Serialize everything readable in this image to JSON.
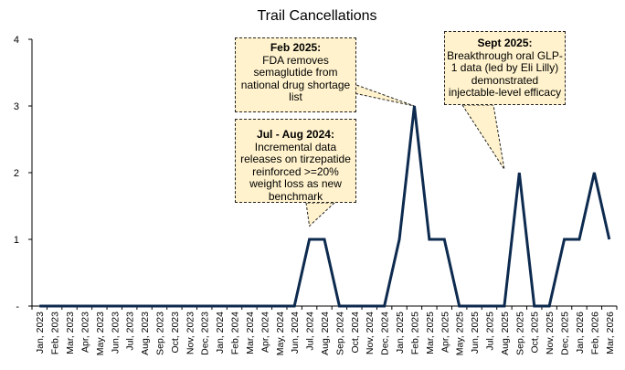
{
  "chart_data": {
    "type": "line",
    "title": "Trail Cancellations",
    "xlabel": "",
    "ylabel": "",
    "ylim": [
      0,
      4
    ],
    "yticks": [
      "-",
      "1",
      "2",
      "3",
      "4"
    ],
    "grid": false,
    "legend": "none",
    "categories": [
      "Jan, 2023",
      "Feb, 2023",
      "Mar, 2023",
      "Apr, 2023",
      "May, 2023",
      "Jun, 2023",
      "Jul, 2023",
      "Aug, 2023",
      "Sep, 2023",
      "Oct, 2023",
      "Nov, 2023",
      "Dec, 2023",
      "Jan, 2024",
      "Feb, 2024",
      "Mar, 2024",
      "Apr, 2024",
      "May, 2024",
      "Jun, 2024",
      "Jul, 2024",
      "Aug, 2024",
      "Sep, 2024",
      "Oct, 2024",
      "Nov, 2024",
      "Dec, 2024",
      "Jan, 2025",
      "Feb, 2025",
      "Mar, 2025",
      "Apr, 2025",
      "May, 2025",
      "Jun, 2025",
      "Jul, 2025",
      "Aug, 2025",
      "Sep, 2025",
      "Oct, 2025",
      "Nov, 2025",
      "Dec, 2025",
      "Jan, 2026",
      "Feb, 2026",
      "Mar, 2026"
    ],
    "series": [
      {
        "values": [
          0,
          0,
          0,
          0,
          0,
          0,
          0,
          0,
          0,
          0,
          0,
          0,
          0,
          0,
          0,
          0,
          0,
          0,
          1,
          1,
          0,
          0,
          0,
          0,
          1,
          3,
          1,
          1,
          0,
          0,
          0,
          0,
          2,
          0,
          0,
          1,
          1,
          2,
          1
        ],
        "color": "#0D2A4F"
      }
    ],
    "annotations": [
      {
        "title": "Feb 2025:",
        "body": "FDA removes semaglutide from national drug shortage list",
        "x": "Feb, 2025",
        "y": 3
      },
      {
        "title": "Jul - Aug 2024:",
        "body": "Incremental data releases on tirzepatide reinforced >=20% weight loss as new benchmark",
        "x": "Jul, 2024",
        "y": 1.2
      },
      {
        "title": "Sept 2025:",
        "body": "Breakthrough oral GLP-1 data (led by Eli Lilly) demonstrated injectable-level efficacy",
        "x": "Aug, 2025",
        "y": 2.05
      }
    ],
    "callout_fill": "#FFF2CC"
  }
}
